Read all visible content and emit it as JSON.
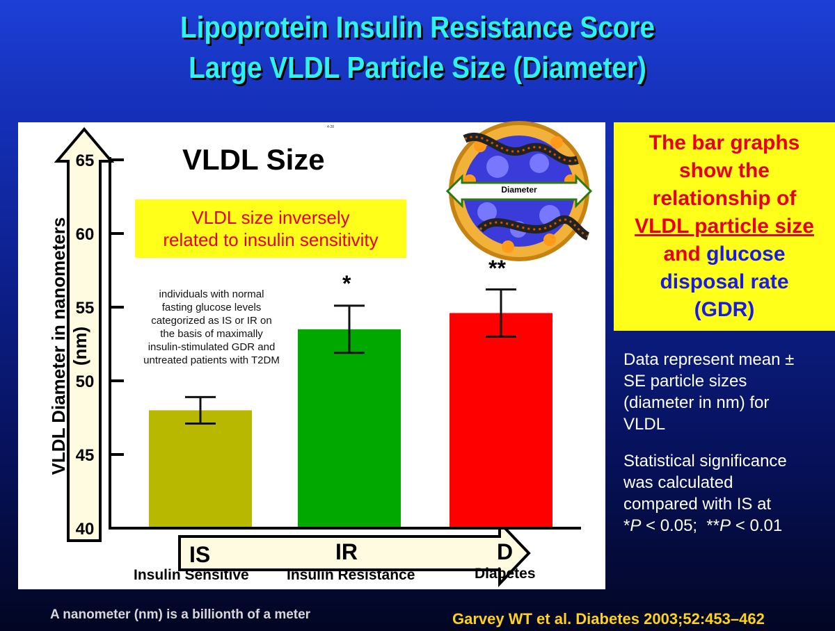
{
  "title_line1": "Lipoprotein Insulin Resistance Score",
  "title_line2": "Large VLDL Particle Size (Diameter)",
  "chart_heading": "VLDL Size",
  "tiny_label": "4-28",
  "highlight_line1": "VLDL size inversely",
  "highlight_line2": "related to insulin sensitivity",
  "note_lines": [
    "individuals with normal",
    "fasting glucose levels",
    "categorized as IS or IR on",
    "the basis of maximally",
    "insulin-stimulated GDR and",
    "untreated patients with T2DM"
  ],
  "particle_label": "Diameter",
  "side_box": {
    "line1": "The bar graphs",
    "line2": "show the",
    "line3": "relationship of",
    "line4": "VLDL particle size",
    "line5_and": "and",
    "line5_glucose": "glucose",
    "line6": "disposal rate",
    "line7": "(GDR)"
  },
  "data_note_lines": [
    "Data represent mean ±",
    "SE particle sizes",
    "(diameter in nm) for",
    "VLDL"
  ],
  "stat_note_lines": [
    "Statistical significance",
    "was calculated",
    "compared with IS at"
  ],
  "stat_p_parts": [
    "*",
    "P",
    " < 0.05;  **",
    "P",
    " < 0.01"
  ],
  "footnote": "A nanometer (nm) is a billionth of a meter",
  "citation": "Garvey WT et al. Diabetes 2003;52:453–462",
  "colors": {
    "bar_is": "#b8b800",
    "bar_ir": "#00a800",
    "bar_d": "#ff0000",
    "title": "#2ef2f2",
    "highlight_bg": "#ffff1a"
  },
  "chart_data": {
    "type": "bar",
    "title": "VLDL Size",
    "ylabel": "VLDL Diameter in nanometers (nm)",
    "xlabel": "",
    "ylim": [
      40,
      65
    ],
    "yticks": [
      40,
      45,
      50,
      55,
      60,
      65
    ],
    "categories": [
      {
        "abbr": "IS",
        "name": "Insulin Sensitive"
      },
      {
        "abbr": "IR",
        "name": "Insulin Resistance"
      },
      {
        "abbr": "D",
        "name": "Diabetes"
      }
    ],
    "values": [
      48.0,
      53.5,
      54.6
    ],
    "errors": [
      0.9,
      1.6,
      1.6
    ],
    "significance": [
      "",
      "*",
      "**"
    ]
  }
}
